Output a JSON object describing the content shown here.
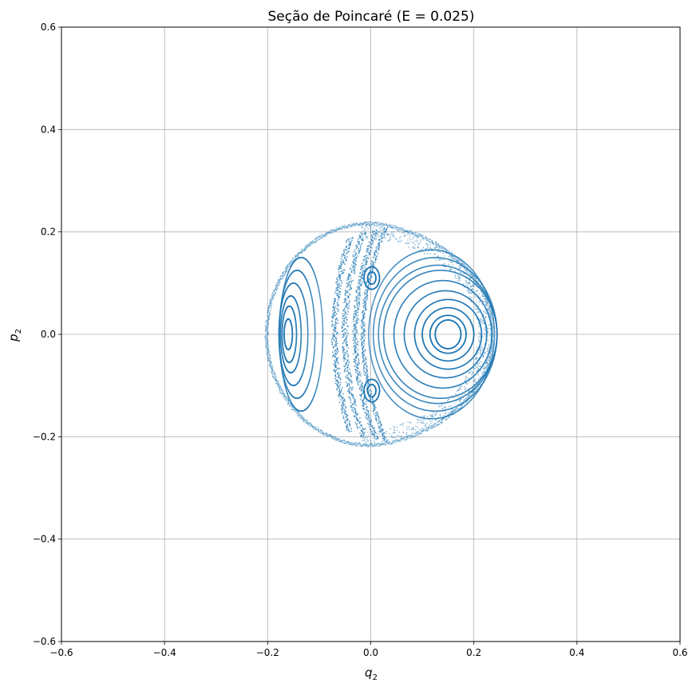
{
  "chart_data": {
    "type": "scatter",
    "title": "Seção de Poincaré (E = 0.025)",
    "xlabel": "q",
    "xlabel_sub": "2",
    "ylabel": "p",
    "ylabel_sub": "2",
    "xlim": [
      -0.6,
      0.6
    ],
    "ylim": [
      -0.6,
      0.6
    ],
    "xticks": [
      -0.6,
      -0.4,
      -0.2,
      0.0,
      0.2,
      0.4,
      0.6
    ],
    "yticks": [
      -0.6,
      -0.4,
      -0.2,
      0.0,
      0.2,
      0.4,
      0.6
    ],
    "xtick_labels": [
      "−0.6",
      "−0.4",
      "−0.2",
      "0.0",
      "0.2",
      "0.4",
      "0.6"
    ],
    "ytick_labels": [
      "−0.6",
      "−0.4",
      "−0.2",
      "0.0",
      "0.2",
      "0.4",
      "0.6"
    ],
    "grid": true,
    "marker_color": "#1f77b4",
    "boundary": {
      "shape": "energy-contour",
      "q_min": -0.205,
      "q_max": 0.24,
      "p_max": 0.22,
      "q_at_p_max": 0.0
    },
    "series": [
      {
        "kind": "ellipse",
        "center": [
          0.15,
          0.0
        ],
        "rq": 0.025,
        "rp": 0.028,
        "points": 260,
        "alpha": 0.95
      },
      {
        "kind": "ellipse",
        "center": [
          0.15,
          0.0
        ],
        "rq": 0.035,
        "rp": 0.037,
        "points": 300,
        "alpha": 0.95
      },
      {
        "kind": "ellipse",
        "center": [
          0.15,
          0.0
        ],
        "rq": 0.05,
        "rp": 0.052,
        "points": 340,
        "alpha": 0.9
      },
      {
        "kind": "ellipse",
        "center": [
          0.15,
          0.0
        ],
        "rq": 0.065,
        "rp": 0.068,
        "points": 380,
        "alpha": 0.85
      },
      {
        "kind": "ellipse",
        "center": [
          0.145,
          0.0
        ],
        "rq": 0.08,
        "rp": 0.085,
        "points": 420,
        "alpha": 0.8
      },
      {
        "kind": "ellipse",
        "center": [
          0.14,
          0.0
        ],
        "rq": 0.095,
        "rp": 0.105,
        "points": 460,
        "alpha": 0.8
      },
      {
        "kind": "ellipse",
        "center": [
          0.135,
          0.0
        ],
        "rq": 0.11,
        "rp": 0.125,
        "points": 520,
        "alpha": 0.75
      },
      {
        "kind": "ellipse",
        "center": [
          0.13,
          0.0
        ],
        "rq": 0.115,
        "rp": 0.135,
        "points": 560,
        "alpha": 0.7
      },
      {
        "kind": "ellipse",
        "center": [
          0.125,
          0.0
        ],
        "rq": 0.12,
        "rp": 0.15,
        "points": 620,
        "alpha": 0.65
      },
      {
        "kind": "ellipse",
        "center": [
          0.118,
          0.0
        ],
        "rq": 0.122,
        "rp": 0.165,
        "points": 680,
        "alpha": 0.6
      },
      {
        "kind": "ellipse",
        "center": [
          -0.16,
          0.0
        ],
        "rq": 0.008,
        "rp": 0.03,
        "points": 200,
        "alpha": 0.95
      },
      {
        "kind": "ellipse",
        "center": [
          -0.158,
          0.0
        ],
        "rq": 0.014,
        "rp": 0.055,
        "points": 240,
        "alpha": 0.9
      },
      {
        "kind": "ellipse",
        "center": [
          -0.155,
          0.0
        ],
        "rq": 0.02,
        "rp": 0.075,
        "points": 280,
        "alpha": 0.85
      },
      {
        "kind": "ellipse",
        "center": [
          -0.15,
          0.0
        ],
        "rq": 0.028,
        "rp": 0.1,
        "points": 340,
        "alpha": 0.8
      },
      {
        "kind": "ellipse",
        "center": [
          -0.143,
          0.0
        ],
        "rq": 0.035,
        "rp": 0.125,
        "points": 400,
        "alpha": 0.75
      },
      {
        "kind": "ellipse",
        "center": [
          -0.135,
          0.0
        ],
        "rq": 0.042,
        "rp": 0.15,
        "points": 460,
        "alpha": 0.7
      },
      {
        "kind": "ellipse",
        "center": [
          0.002,
          0.11
        ],
        "rq": 0.008,
        "rp": 0.012,
        "points": 120,
        "alpha": 0.95
      },
      {
        "kind": "ellipse",
        "center": [
          0.002,
          0.11
        ],
        "rq": 0.015,
        "rp": 0.022,
        "points": 160,
        "alpha": 0.9
      },
      {
        "kind": "ellipse",
        "center": [
          0.002,
          -0.11
        ],
        "rq": 0.008,
        "rp": 0.012,
        "points": 120,
        "alpha": 0.95
      },
      {
        "kind": "ellipse",
        "center": [
          0.002,
          -0.11
        ],
        "rq": 0.015,
        "rp": 0.022,
        "points": 160,
        "alpha": 0.9
      },
      {
        "kind": "crescent",
        "q_mid": -0.07,
        "half_height": 0.19,
        "bulge": 0.03,
        "width": 0.012,
        "points": 380,
        "alpha": 0.75
      },
      {
        "kind": "crescent",
        "q_mid": -0.05,
        "half_height": 0.2,
        "bulge": 0.035,
        "width": 0.012,
        "points": 400,
        "alpha": 0.7
      },
      {
        "kind": "crescent",
        "q_mid": -0.03,
        "half_height": 0.205,
        "bulge": 0.04,
        "width": 0.01,
        "points": 420,
        "alpha": 0.7
      },
      {
        "kind": "crescent",
        "q_mid": -0.015,
        "half_height": 0.21,
        "bulge": 0.045,
        "width": 0.008,
        "points": 440,
        "alpha": 0.65
      },
      {
        "kind": "ring",
        "center": [
          0.04,
          0.0
        ],
        "r_inner": 0.17,
        "r_outer": 0.2,
        "points": 1400,
        "alpha": 0.45
      },
      {
        "kind": "boundary",
        "points": 1800,
        "alpha": 0.4
      }
    ]
  }
}
